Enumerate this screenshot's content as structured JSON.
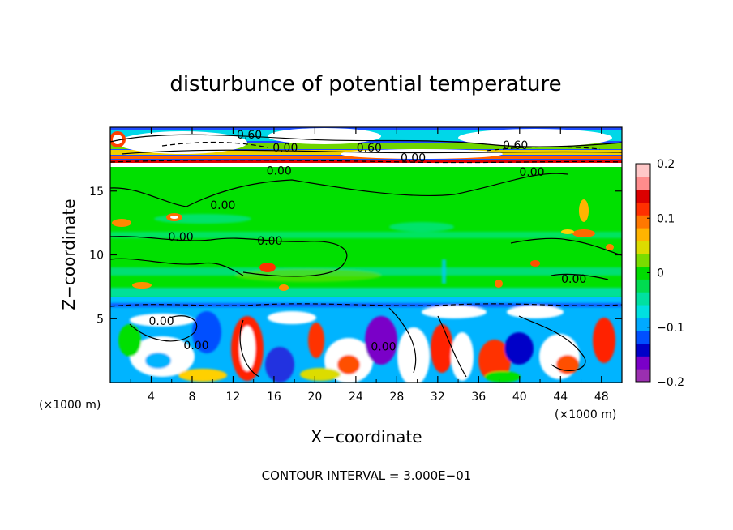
{
  "chart_data": {
    "type": "heatmap",
    "title": "disturbunce of potential temperature",
    "xlabel": "X−coordinate",
    "ylabel": "Z−coordinate",
    "x_unit_left": "(×1000 m)",
    "x_unit_right": "(×1000 m)",
    "xlim": [
      0,
      50
    ],
    "ylim": [
      0,
      20
    ],
    "x_ticks": [
      4,
      8,
      12,
      16,
      20,
      24,
      28,
      32,
      36,
      40,
      44,
      48
    ],
    "y_ticks": [
      5,
      10,
      15
    ],
    "colorbar": {
      "min": -0.2,
      "max": 0.2,
      "ticks": [
        {
          "value": 0.2,
          "label": "0.2"
        },
        {
          "value": 0.1,
          "label": "0.1"
        },
        {
          "value": 0,
          "label": "0"
        },
        {
          "value": -0.1,
          "label": "−0.1"
        },
        {
          "value": -0.2,
          "label": "−0.2"
        }
      ],
      "colors": [
        "#9b2fb0",
        "#7a00c8",
        "#0000c8",
        "#0050ff",
        "#00aaff",
        "#00e0e0",
        "#00e0a0",
        "#00dc50",
        "#00dc00",
        "#7adc00",
        "#dcdc00",
        "#ffb400",
        "#ff7800",
        "#ff3000",
        "#dc0000",
        "#ff8c8c",
        "#ffc8c8"
      ]
    },
    "contour_labels": [
      {
        "text": "0.60",
        "x": 13.6,
        "y": 19.1
      },
      {
        "text": "0.00",
        "x": 17.1,
        "y": 18.1
      },
      {
        "text": "0.60",
        "x": 25.3,
        "y": 18.1
      },
      {
        "text": "0.00",
        "x": 29.6,
        "y": 17.3
      },
      {
        "text": "0.60",
        "x": 39.6,
        "y": 18.3
      },
      {
        "text": "0.00",
        "x": 16.5,
        "y": 16.3
      },
      {
        "text": "0.00",
        "x": 41.2,
        "y": 16.2
      },
      {
        "text": "0.00",
        "x": 11.0,
        "y": 13.6
      },
      {
        "text": "0.00",
        "x": 6.9,
        "y": 11.1
      },
      {
        "text": "0.00",
        "x": 15.6,
        "y": 10.8
      },
      {
        "text": "0.00",
        "x": 45.3,
        "y": 7.8
      },
      {
        "text": "0.00",
        "x": 5.0,
        "y": 4.5
      },
      {
        "text": "0.00",
        "x": 8.4,
        "y": 2.6
      },
      {
        "text": "0.00",
        "x": 26.7,
        "y": 2.5
      }
    ],
    "footnote": "CONTOUR INTERVAL = 3.000E−01"
  }
}
